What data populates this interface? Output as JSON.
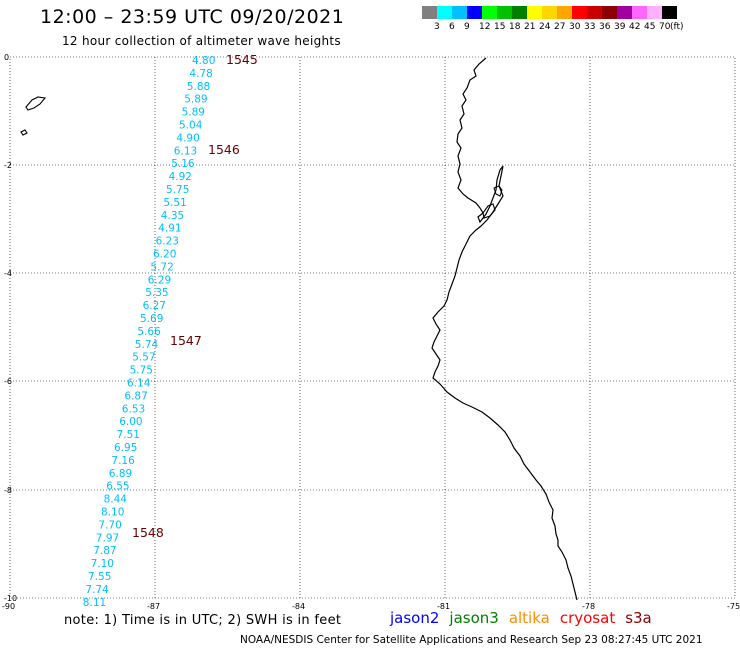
{
  "header": {
    "title": "12:00 – 23:59 UTC 09/20/2021",
    "subtitle": "12 hour collection of altimeter wave heights"
  },
  "legend": {
    "colors": [
      "#808080",
      "#00ffff",
      "#00bfff",
      "#0000ff",
      "#00ff00",
      "#00c000",
      "#008000",
      "#ffff00",
      "#ffd700",
      "#ffa500",
      "#ff0000",
      "#c80000",
      "#8b0000",
      "#a000a0",
      "#ff66ff",
      "#ffb0ff",
      "#000000"
    ],
    "labels": [
      "3",
      "6",
      "9",
      "12",
      "15",
      "18",
      "21",
      "24",
      "27",
      "30",
      "33",
      "36",
      "39",
      "42",
      "45",
      "70",
      "(ft)"
    ]
  },
  "map": {
    "lat_ticks": [
      "0",
      "-2",
      "-4",
      "-6",
      "-8",
      "-10"
    ],
    "lon_ticks": [
      "-90",
      "-87",
      "-84",
      "-81",
      "-78",
      "-75"
    ],
    "value_color": "#00bfff",
    "pass_color": "#6b0000",
    "wave_values": [
      "4.80",
      "4.78",
      "5.88",
      "5.89",
      "5.89",
      "5.04",
      "4.90",
      "6.13",
      "5.16",
      "4.92",
      "5.75",
      "5.51",
      "4.35",
      "4.91",
      "6.23",
      "6.20",
      "5.72",
      "6.29",
      "5.35",
      "6.27",
      "5.69",
      "5.66",
      "5.74",
      "5.57",
      "5.75",
      "6.14",
      "6.87",
      "6.53",
      "6.00",
      "7.51",
      "6.95",
      "7.16",
      "6.89",
      "6.55",
      "8.44",
      "8.10",
      "7.70",
      "7.97",
      "7.87",
      "7.10",
      "7.55",
      "7.74",
      "8.11"
    ],
    "pass_labels": [
      "1545",
      "1546",
      "1547",
      "1548"
    ]
  },
  "footer": {
    "note": "note: 1) Time is in UTC; 2) SWH is in feet",
    "satellites": [
      {
        "name": "jason2",
        "color": "#0000ff"
      },
      {
        "name": "jason3",
        "color": "#008000"
      },
      {
        "name": "altika",
        "color": "#ff8c00"
      },
      {
        "name": "cryosat",
        "color": "#ff0000"
      },
      {
        "name": "s3a",
        "color": "#8b0000"
      }
    ],
    "credit": "NOAA/NESDIS Center for Satellite Applications and Research   Sep 23 08:27:45 UTC 2021"
  }
}
